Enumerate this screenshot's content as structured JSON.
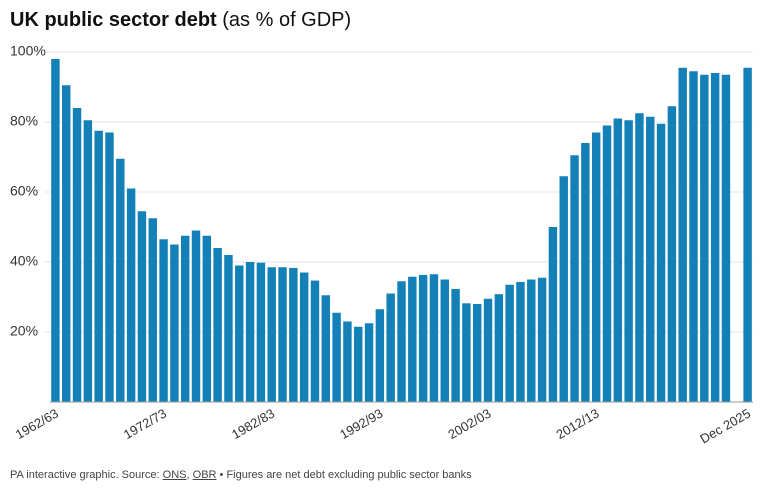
{
  "chart_data": {
    "type": "bar",
    "title": "UK public sector debt",
    "subtitle": "(as % of GDP)",
    "categories": [
      "1962/63",
      null,
      null,
      null,
      null,
      null,
      null,
      null,
      null,
      null,
      "1972/73",
      null,
      null,
      null,
      null,
      null,
      null,
      null,
      null,
      null,
      "1982/83",
      null,
      null,
      null,
      null,
      null,
      null,
      null,
      null,
      null,
      "1992/93",
      null,
      null,
      null,
      null,
      null,
      null,
      null,
      null,
      null,
      "2002/03",
      null,
      null,
      null,
      null,
      null,
      null,
      null,
      null,
      null,
      "2012/13",
      null,
      null,
      null,
      null,
      null,
      null,
      null,
      null,
      null,
      null,
      null,
      null,
      null,
      "Dec 2025"
    ],
    "values": [
      98,
      90.5,
      84,
      80.5,
      77.5,
      77,
      69.5,
      61,
      54.5,
      52.5,
      46.5,
      45,
      47.5,
      49,
      47.5,
      44,
      42,
      39,
      40,
      39.8,
      38.5,
      38.5,
      38.3,
      37,
      34.7,
      30.5,
      25.5,
      23,
      21.5,
      22.5,
      26.5,
      31,
      34.5,
      35.8,
      36.3,
      36.5,
      35,
      32.3,
      28.2,
      28,
      29.5,
      30.8,
      33.5,
      34.3,
      35,
      35.5,
      50,
      64.5,
      70.5,
      74,
      77,
      79,
      81,
      80.5,
      82.5,
      81.5,
      79.5,
      84.5,
      95.5,
      94.5,
      93.5,
      94,
      93.5,
      null,
      95.5
    ],
    "color": "#1380b8",
    "ylim": [
      0,
      100
    ],
    "yticks": [
      {
        "value": 20,
        "label": "20%"
      },
      {
        "value": 40,
        "label": "40%"
      },
      {
        "value": 60,
        "label": "60%"
      },
      {
        "value": 80,
        "label": "80%"
      },
      {
        "value": 100,
        "label": "100%"
      }
    ],
    "grid": true,
    "footer": {
      "text": "PA interactive graphic. Source:",
      "links": [
        "ONS",
        "OBR"
      ],
      "separator": ",",
      "note": "• Figures are net debt excluding public sector banks"
    }
  }
}
